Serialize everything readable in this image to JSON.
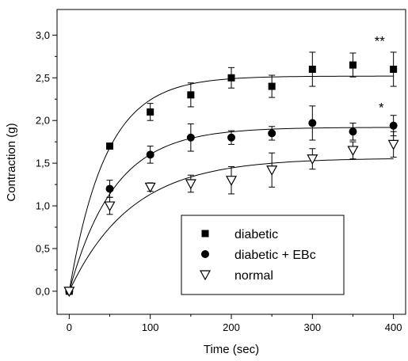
{
  "chart_data": {
    "type": "scatter",
    "xlabel": "Time (sec)",
    "ylabel": "Contraction (g)",
    "xlim": [
      -15,
      415
    ],
    "ylim": [
      -0.27,
      3.3
    ],
    "x_ticks": [
      "0",
      "100",
      "200",
      "300",
      "400"
    ],
    "y_ticks": [
      "0,0",
      "0,5",
      "1,0",
      "1,5",
      "2,0",
      "2,5",
      "3,0"
    ],
    "legend_position": "bottom-right",
    "grid": false,
    "annotations": [
      {
        "text": "**",
        "x": 383,
        "y": 2.88
      },
      {
        "text": "*",
        "x": 385,
        "y": 2.1
      }
    ],
    "series": [
      {
        "name": "diabetic",
        "marker": "square",
        "x": [
          0,
          50,
          100,
          150,
          200,
          250,
          300,
          350,
          400
        ],
        "y": [
          0.0,
          1.7,
          2.1,
          2.3,
          2.5,
          2.4,
          2.6,
          2.65,
          2.6
        ],
        "err": [
          0,
          0.03,
          0.1,
          0.14,
          0.12,
          0.13,
          0.2,
          0.14,
          0.2
        ],
        "fit_plateau": 2.52,
        "fit_rate": 0.022
      },
      {
        "name": "diabetic + EBc",
        "marker": "circle",
        "x": [
          0,
          50,
          100,
          150,
          200,
          250,
          300,
          350,
          400
        ],
        "y": [
          0.0,
          1.2,
          1.6,
          1.8,
          1.8,
          1.85,
          1.97,
          1.87,
          1.94
        ],
        "err": [
          0,
          0.1,
          0.1,
          0.16,
          0.08,
          0.08,
          0.2,
          0.1,
          0.12
        ],
        "fit_plateau": 1.92,
        "fit_rate": 0.018
      },
      {
        "name": "normal",
        "marker": "triangle-down",
        "x": [
          0,
          50,
          100,
          150,
          200,
          250,
          300,
          350,
          400
        ],
        "y": [
          0.0,
          1.0,
          1.22,
          1.26,
          1.3,
          1.42,
          1.55,
          1.65,
          1.72
        ],
        "err": [
          0,
          0.1,
          0.05,
          0.1,
          0.16,
          0.2,
          0.12,
          0.1,
          0.15
        ],
        "fit_plateau": 1.56,
        "fit_rate": 0.013
      }
    ]
  }
}
